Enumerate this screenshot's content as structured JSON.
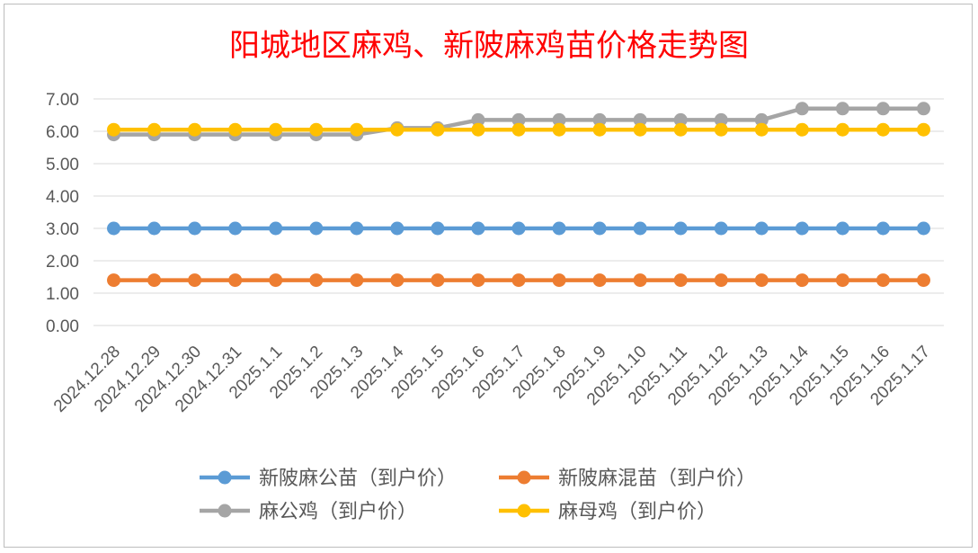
{
  "chart_data": {
    "type": "line",
    "title": "阳城地区麻鸡、新陂麻鸡苗价格走势图",
    "title_color": "#ff0000",
    "categories": [
      "2024.12.28",
      "2024.12.29",
      "2024.12.30",
      "2024.12.31",
      "2025.1.1",
      "2025.1.2",
      "2025.1.3",
      "2025.1.4",
      "2025.1.5",
      "2025.1.6",
      "2025.1.7",
      "2025.1.8",
      "2025.1.9",
      "2025.1.10",
      "2025.1.11",
      "2025.1.12",
      "2025.1.13",
      "2025.1.14",
      "2025.1.15",
      "2025.1.16",
      "2025.1.17"
    ],
    "ylim": [
      0,
      7
    ],
    "yticks": [
      "0.00",
      "1.00",
      "2.00",
      "3.00",
      "4.00",
      "5.00",
      "6.00",
      "7.00"
    ],
    "grid": true,
    "legend_position": "bottom",
    "series": [
      {
        "name": "新陂麻公苗（到户价）",
        "color": "#5b9bd5",
        "values": [
          3,
          3,
          3,
          3,
          3,
          3,
          3,
          3,
          3,
          3,
          3,
          3,
          3,
          3,
          3,
          3,
          3,
          3,
          3,
          3,
          3
        ]
      },
      {
        "name": "新陂麻混苗（到户价）",
        "color": "#ed7d31",
        "values": [
          1.4,
          1.4,
          1.4,
          1.4,
          1.4,
          1.4,
          1.4,
          1.4,
          1.4,
          1.4,
          1.4,
          1.4,
          1.4,
          1.4,
          1.4,
          1.4,
          1.4,
          1.4,
          1.4,
          1.4,
          1.4
        ]
      },
      {
        "name": "麻公鸡（到户价）",
        "color": "#a5a5a5",
        "values": [
          5.9,
          5.9,
          5.9,
          5.9,
          5.9,
          5.9,
          5.9,
          6.1,
          6.1,
          6.35,
          6.35,
          6.35,
          6.35,
          6.35,
          6.35,
          6.35,
          6.35,
          6.7,
          6.7,
          6.7,
          6.7
        ]
      },
      {
        "name": "麻母鸡（到户价）",
        "color": "#ffc000",
        "values": [
          6.05,
          6.05,
          6.05,
          6.05,
          6.05,
          6.05,
          6.05,
          6.05,
          6.05,
          6.05,
          6.05,
          6.05,
          6.05,
          6.05,
          6.05,
          6.05,
          6.05,
          6.05,
          6.05,
          6.05,
          6.05
        ]
      }
    ]
  }
}
